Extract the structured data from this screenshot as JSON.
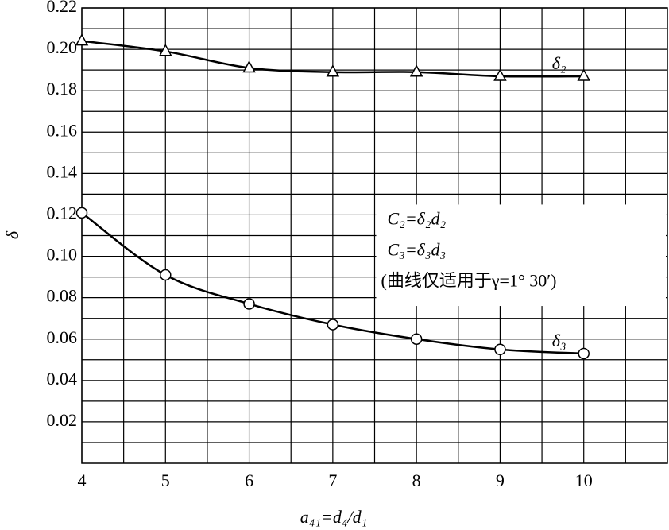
{
  "chart_data": {
    "type": "line",
    "x_label": "a₄₁=d₄/d₁",
    "y_label": "δ",
    "x": [
      4,
      5,
      6,
      7,
      8,
      9,
      10
    ],
    "series": [
      {
        "name": "δ₂",
        "color": "#000000",
        "marker": "triangle",
        "values": [
          0.204,
          0.199,
          0.191,
          0.189,
          0.189,
          0.187,
          0.187
        ]
      },
      {
        "name": "δ₃",
        "color": "#000000",
        "marker": "circle",
        "values": [
          0.121,
          0.091,
          0.077,
          0.067,
          0.06,
          0.055,
          0.053
        ]
      }
    ],
    "annotation": [
      "C₂=δ₂d₂",
      "C₃=δ₃d₃",
      "(曲线仅适用于γ=1° 30′)"
    ],
    "xlim": [
      4,
      11
    ],
    "xticks": [
      4,
      5,
      6,
      7,
      8,
      9,
      10
    ],
    "ylim": [
      0,
      0.22
    ],
    "yticks": [
      0.02,
      0.04,
      0.06,
      0.08,
      {
        "value": 0.1,
        "label": "0.10"
      },
      0.12,
      0.14,
      0.16,
      0.18,
      {
        "value": 0.2,
        "label": "0.20"
      },
      0.22
    ],
    "grid": true,
    "minor_grid": true
  }
}
